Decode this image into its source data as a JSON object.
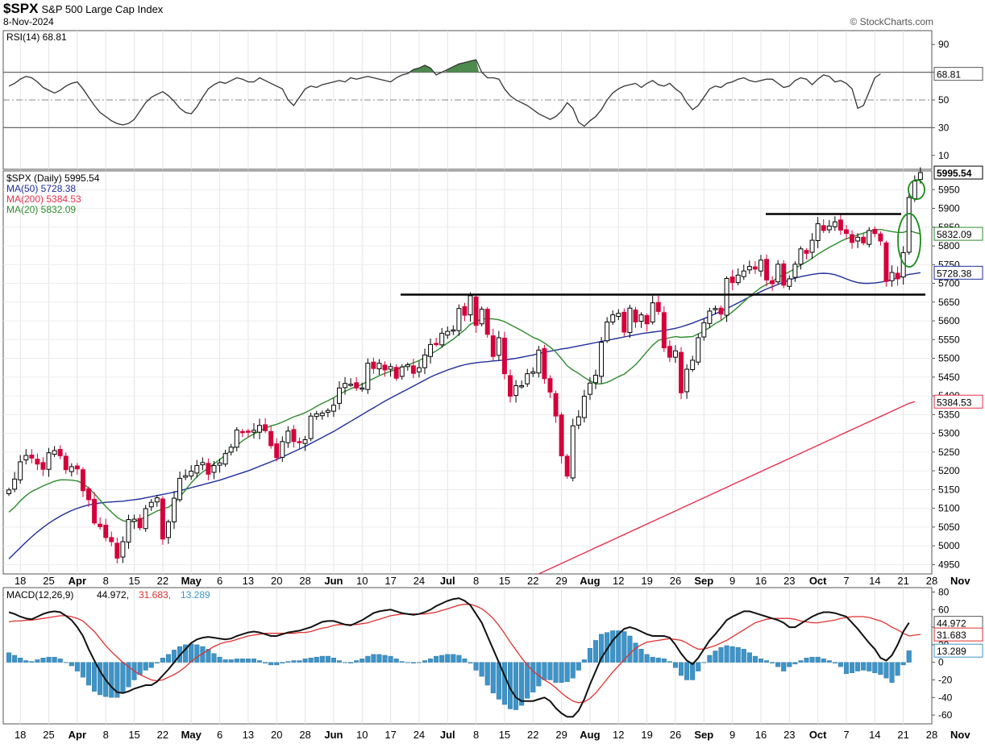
{
  "header": {
    "symbol": "$SPX",
    "name": "S&P 500 Large Cap Index",
    "date": "8-Nov-2024",
    "brand": "© StockCharts.com"
  },
  "colors": {
    "up": "#ffffff",
    "down": "#d4003a",
    "ma50": "#1f2f9a",
    "ma200": "#e8304c",
    "ma20": "#2e8b2e",
    "macd": "#111111",
    "signal": "#e03030",
    "hist": "#3d94c8",
    "rsi_fill": "#4d8a4d"
  },
  "chart_data": [
    {
      "type": "line",
      "title": "RSI(14) 68.81",
      "indicator": "RSI(14)",
      "last_value": "68.81",
      "ylim": [
        0,
        100
      ],
      "yticks": [
        "90",
        "70",
        "50",
        "30",
        "10"
      ],
      "overbought": 70,
      "oversold": 30,
      "midline": 50,
      "values": [
        60,
        62,
        65,
        67,
        66,
        63,
        59,
        57,
        55,
        57,
        60,
        62,
        63,
        58,
        52,
        46,
        41,
        38,
        35,
        33,
        32,
        33,
        36,
        42,
        48,
        52,
        54,
        56,
        53,
        49,
        44,
        41,
        40,
        45,
        52,
        58,
        61,
        63,
        62,
        64,
        66,
        65,
        63,
        63,
        66,
        64,
        62,
        60,
        58,
        50,
        46,
        52,
        58,
        60,
        59,
        61,
        62,
        63,
        64,
        63,
        66,
        65,
        66,
        67,
        66,
        65,
        64,
        63,
        66,
        68,
        69,
        72,
        73,
        75,
        73,
        68,
        70,
        72,
        74,
        76,
        77,
        78,
        79,
        70,
        66,
        66,
        65,
        58,
        53,
        50,
        48,
        46,
        43,
        40,
        38,
        36,
        38,
        42,
        48,
        44,
        34,
        31,
        35,
        38,
        43,
        50,
        55,
        58,
        60,
        61,
        62,
        59,
        62,
        64,
        61,
        60,
        62,
        58,
        55,
        48,
        43,
        46,
        52,
        58,
        60,
        59,
        62,
        63,
        65,
        66,
        64,
        63,
        64,
        65,
        65,
        62,
        59,
        60,
        64,
        66,
        65,
        61,
        65,
        68,
        67,
        63,
        64,
        62,
        58,
        44,
        46,
        56,
        66,
        68.81
      ],
      "last_value_num": 68.81
    },
    {
      "type": "candlestick",
      "title": "$SPX (Daily) 5995.54",
      "ylim": [
        4925,
        6000
      ],
      "yticks": [
        "4950",
        "5000",
        "5050",
        "5100",
        "5150",
        "5200",
        "5250",
        "5300",
        "5350",
        "5400",
        "5450",
        "5500",
        "5550",
        "5600",
        "5650",
        "5700",
        "5750",
        "5800",
        "5850",
        "5900",
        "5950"
      ],
      "x_tick_labels": [
        "18",
        "25",
        "Apr",
        "8",
        "15",
        "22",
        "May",
        "6",
        "13",
        "20",
        "28",
        "Jun",
        "10",
        "17",
        "24",
        "Jul",
        "8",
        "15",
        "22",
        "29",
        "Aug",
        "12",
        "19",
        "26",
        "Sep",
        "9",
        "16",
        "23",
        "Oct",
        "7",
        "14",
        "21",
        "28",
        "Nov"
      ],
      "legend": [
        {
          "label": "$SPX (Daily) 5995.54",
          "color": "#000000"
        },
        {
          "label": "MA(50) 5728.38",
          "color": "#1f2f9a"
        },
        {
          "label": "MA(200) 5384.53",
          "color": "#e8304c"
        },
        {
          "label": "MA(20) 5832.09",
          "color": "#2e8b2e"
        }
      ],
      "last_labels": [
        {
          "text": "5995.54",
          "value": 5995.54,
          "color": "#000000",
          "bold": true
        },
        {
          "text": "5832.09",
          "value": 5832.09,
          "color": "#2e8b2e"
        },
        {
          "text": "5728.38",
          "value": 5728.38,
          "color": "#1f2f9a"
        },
        {
          "text": "5384.53",
          "value": 5384.53,
          "color": "#e8304c"
        }
      ],
      "closes": [
        5149,
        5178,
        5224,
        5241,
        5234,
        5218,
        5204,
        5248,
        5254,
        5240,
        5203,
        5211,
        5205,
        5147,
        5123,
        5061,
        5051,
        5022,
        5011,
        4967,
        5011,
        5070,
        5071,
        5048,
        5099,
        5116,
        5128,
        5018,
        5064,
        5127,
        5180,
        5187,
        5199,
        5214,
        5222,
        5191,
        5214,
        5221,
        5246,
        5263,
        5309,
        5303,
        5304,
        5308,
        5321,
        5307,
        5267,
        5235,
        5278,
        5306,
        5278,
        5277,
        5283,
        5346,
        5352,
        5354,
        5361,
        5375,
        5421,
        5433,
        5431,
        5421,
        5421,
        5487,
        5473,
        5487,
        5469,
        5478,
        5447,
        5477,
        5483,
        5460,
        5475,
        5509,
        5537,
        5537,
        5567,
        5572,
        5576,
        5633,
        5615,
        5667,
        5588,
        5631,
        5564,
        5505,
        5555,
        5459,
        5399,
        5427,
        5427,
        5459,
        5464,
        5522,
        5446,
        5410,
        5346,
        5240,
        5186,
        5320,
        5344,
        5399,
        5434,
        5455,
        5543,
        5597,
        5616,
        5620,
        5570,
        5634,
        5597,
        5616,
        5592,
        5648,
        5625,
        5528,
        5503,
        5520,
        5408,
        5471,
        5495,
        5555,
        5595,
        5626,
        5633,
        5618,
        5713,
        5702,
        5722,
        5733,
        5745,
        5738,
        5762,
        5709,
        5699,
        5751,
        5695,
        5712,
        5751,
        5792,
        5780,
        5815,
        5859,
        5841,
        5853,
        5864,
        5842,
        5833,
        5809,
        5823,
        5808,
        5841,
        5833,
        5813,
        5705,
        5729,
        5712,
        5782,
        5929,
        5973,
        5995.54
      ],
      "ma20": [
        5090,
        5103,
        5120,
        5134,
        5145,
        5152,
        5160,
        5166,
        5172,
        5176,
        5176,
        5175,
        5173,
        5166,
        5154,
        5139,
        5122,
        5105,
        5090,
        5076,
        5067,
        5064,
        5065,
        5070,
        5077,
        5085,
        5093,
        5098,
        5103,
        5114,
        5130,
        5149,
        5168,
        5184,
        5197,
        5207,
        5219,
        5230,
        5242,
        5255,
        5268,
        5280,
        5290,
        5298,
        5306,
        5314,
        5320,
        5324,
        5330,
        5337,
        5344,
        5349,
        5355,
        5363,
        5372,
        5380,
        5387,
        5395,
        5404,
        5412,
        5419,
        5425,
        5431,
        5439,
        5446,
        5454,
        5460,
        5466,
        5470,
        5476,
        5482,
        5488,
        5494,
        5502,
        5511,
        5520,
        5530,
        5541,
        5551,
        5564,
        5576,
        5591,
        5598,
        5605,
        5606,
        5605,
        5603,
        5598,
        5590,
        5582,
        5574,
        5565,
        5556,
        5550,
        5541,
        5530,
        5517,
        5499,
        5480,
        5469,
        5460,
        5449,
        5440,
        5432,
        5432,
        5436,
        5443,
        5451,
        5458,
        5470,
        5483,
        5500,
        5518,
        5535,
        5548,
        5552,
        5555,
        5558,
        5556,
        5557,
        5558,
        5565,
        5573,
        5582,
        5593,
        5601,
        5613,
        5624,
        5637,
        5651,
        5665,
        5677,
        5689,
        5697,
        5705,
        5716,
        5723,
        5731,
        5739,
        5749,
        5757,
        5767,
        5778,
        5787,
        5796,
        5804,
        5812,
        5819,
        5824,
        5829,
        5834,
        5839,
        5842,
        5844,
        5841,
        5838,
        5836,
        5836,
        5841,
        5836,
        5832.09
      ],
      "ma50": [
        4965,
        4980,
        4995,
        5010,
        5024,
        5037,
        5049,
        5060,
        5070,
        5079,
        5087,
        5094,
        5100,
        5105,
        5109,
        5112,
        5114,
        5116,
        5117,
        5118,
        5119,
        5121,
        5123,
        5125,
        5128,
        5131,
        5134,
        5137,
        5140,
        5143,
        5147,
        5151,
        5155,
        5159,
        5163,
        5167,
        5171,
        5175,
        5180,
        5185,
        5190,
        5195,
        5200,
        5206,
        5212,
        5218,
        5224,
        5230,
        5237,
        5244,
        5251,
        5258,
        5265,
        5273,
        5281,
        5289,
        5297,
        5305,
        5314,
        5323,
        5332,
        5341,
        5350,
        5359,
        5368,
        5377,
        5386,
        5394,
        5402,
        5410,
        5418,
        5426,
        5434,
        5442,
        5450,
        5457,
        5463,
        5469,
        5474,
        5479,
        5483,
        5486,
        5488,
        5490,
        5491,
        5493,
        5494,
        5496,
        5498,
        5500,
        5503,
        5506,
        5509,
        5513,
        5516,
        5519,
        5522,
        5525,
        5527,
        5530,
        5533,
        5536,
        5539,
        5542,
        5545,
        5548,
        5551,
        5554,
        5557,
        5560,
        5563,
        5566,
        5568,
        5570,
        5572,
        5574,
        5577,
        5580,
        5584,
        5589,
        5594,
        5600,
        5606,
        5612,
        5619,
        5626,
        5633,
        5640,
        5648,
        5656,
        5664,
        5671,
        5678,
        5685,
        5691,
        5697,
        5703,
        5709,
        5714,
        5718,
        5721,
        5724,
        5726,
        5727,
        5726,
        5723,
        5718,
        5712,
        5706,
        5702,
        5700,
        5700,
        5701,
        5703,
        5706,
        5710,
        5715,
        5720,
        5724,
        5726,
        5728.38
      ],
      "ma200_first_index": 93,
      "ma200": [
        4925,
        4932,
        4939,
        4946,
        4953,
        4960,
        4967,
        4974,
        4981,
        4988,
        4995,
        5002,
        5009,
        5016,
        5023,
        5030,
        5037,
        5044,
        5051,
        5058,
        5065,
        5072,
        5079,
        5086,
        5093,
        5100,
        5107,
        5114,
        5121,
        5128,
        5135,
        5142,
        5149,
        5156,
        5163,
        5170,
        5177,
        5184,
        5191,
        5198,
        5205,
        5212,
        5219,
        5226,
        5233,
        5240,
        5247,
        5254,
        5261,
        5268,
        5275,
        5282,
        5289,
        5296,
        5303,
        5310,
        5317,
        5324,
        5331,
        5338,
        5345,
        5352,
        5359,
        5366,
        5373,
        5380,
        5384.53
      ],
      "horizontal_lines": [
        5690,
        5690
      ]
    },
    {
      "type": "bar",
      "title": "MACD(12,26,9) 44.972, 31.683, 13.289",
      "ylim": [
        -70,
        85
      ],
      "yticks": [
        "80",
        "60",
        "40",
        "20",
        "0",
        "-20",
        "-40",
        "-60"
      ],
      "legend": [
        {
          "label": "MACD(12,26,9)",
          "color": "#000000"
        },
        {
          "label": "44.972",
          "color": "#000000"
        },
        {
          "label": "31.683",
          "color": "#e03030"
        },
        {
          "label": "13.289",
          "color": "#3d94c8"
        }
      ],
      "macd": [
        57,
        55,
        52,
        50,
        49,
        52,
        55,
        57,
        58,
        57,
        53,
        48,
        40,
        30,
        15,
        2,
        -10,
        -20,
        -28,
        -34,
        -35,
        -33,
        -30,
        -28,
        -26,
        -26,
        -22,
        -15,
        -8,
        0,
        8,
        15,
        22,
        26,
        28,
        29,
        28,
        27,
        26,
        27,
        30,
        32,
        34,
        35,
        34,
        32,
        30,
        30,
        32,
        34,
        35,
        36,
        38,
        40,
        43,
        46,
        47,
        47,
        45,
        43,
        42,
        45,
        48,
        52,
        56,
        58,
        59,
        60,
        58,
        56,
        55,
        54,
        55,
        57,
        60,
        64,
        67,
        70,
        72,
        73,
        70,
        65,
        55,
        45,
        30,
        15,
        0,
        -15,
        -30,
        -40,
        -44,
        -44,
        -44,
        -42,
        -40,
        -44,
        -52,
        -58,
        -62,
        -62,
        -55,
        -42,
        -25,
        -10,
        5,
        15,
        25,
        32,
        38,
        40,
        38,
        35,
        32,
        30,
        30,
        30,
        28,
        20,
        10,
        2,
        -2,
        5,
        15,
        25,
        32,
        40,
        48,
        52,
        55,
        58,
        58,
        56,
        54,
        52,
        50,
        48,
        45,
        40,
        40,
        44,
        48,
        52,
        55,
        57,
        57,
        56,
        54,
        52,
        45,
        38,
        30,
        22,
        15,
        5,
        2,
        8,
        20,
        35,
        44.972
      ],
      "signal": [
        46,
        47,
        47,
        48,
        48,
        49,
        50,
        51,
        52,
        53,
        53,
        52,
        50,
        47,
        41,
        35,
        27,
        19,
        12,
        6,
        0,
        -5,
        -10,
        -14,
        -17,
        -20,
        -21,
        -20,
        -17,
        -14,
        -10,
        -5,
        1,
        6,
        10,
        14,
        18,
        21,
        23,
        24,
        26,
        28,
        30,
        31,
        32,
        33,
        33,
        33,
        33,
        33,
        33,
        34,
        34,
        35,
        37,
        39,
        40,
        42,
        43,
        43,
        43,
        43,
        44,
        45,
        47,
        49,
        51,
        53,
        54,
        55,
        55,
        55,
        55,
        55,
        56,
        57,
        59,
        61,
        63,
        65,
        66,
        66,
        64,
        61,
        56,
        50,
        42,
        33,
        23,
        14,
        5,
        -3,
        -10,
        -15,
        -20,
        -24,
        -29,
        -35,
        -40,
        -44,
        -46,
        -45,
        -41,
        -35,
        -27,
        -19,
        -11,
        -4,
        3,
        10,
        16,
        20,
        23,
        24,
        25,
        26,
        27,
        26,
        25,
        22,
        18,
        15,
        15,
        17,
        19,
        22,
        25,
        29,
        33,
        37,
        41,
        45,
        47,
        49,
        50,
        50,
        50,
        50,
        49,
        47,
        46,
        45,
        45,
        46,
        47,
        48,
        50,
        51,
        52,
        52,
        52,
        51,
        49,
        47,
        44,
        40,
        37,
        33,
        30,
        31,
        31.683
      ],
      "histogram": [
        11,
        8,
        5,
        2,
        1,
        3,
        5,
        6,
        6,
        4,
        0,
        -4,
        -10,
        -17,
        -26,
        -33,
        -37,
        -39,
        -40,
        -40,
        -35,
        -28,
        -20,
        -14,
        -9,
        -6,
        -1,
        5,
        9,
        14,
        18,
        20,
        21,
        20,
        18,
        15,
        10,
        6,
        3,
        3,
        4,
        4,
        4,
        4,
        2,
        -1,
        -3,
        -3,
        -1,
        1,
        2,
        2,
        4,
        5,
        6,
        7,
        7,
        5,
        2,
        0,
        -1,
        2,
        4,
        7,
        9,
        9,
        8,
        7,
        4,
        1,
        0,
        -1,
        0,
        2,
        4,
        7,
        8,
        9,
        9,
        8,
        4,
        -1,
        -9,
        -16,
        -26,
        -35,
        -42,
        -48,
        -53,
        -54,
        -49,
        -41,
        -34,
        -27,
        -20,
        -20,
        -23,
        -23,
        -22,
        -18,
        -9,
        3,
        16,
        25,
        32,
        34,
        36,
        36,
        35,
        30,
        22,
        15,
        9,
        6,
        5,
        4,
        1,
        -6,
        -15,
        -20,
        -20,
        -10,
        0,
        8,
        13,
        17,
        19,
        18,
        17,
        15,
        11,
        7,
        4,
        2,
        -1,
        -5,
        -10,
        -5,
        -2,
        2,
        5,
        6,
        6,
        4,
        2,
        -1,
        -5,
        -13,
        -12,
        -10,
        -9,
        -10,
        -12,
        -14,
        -18,
        -23,
        -15,
        -3,
        13.289
      ],
      "x_tick_labels": [
        "18",
        "25",
        "Apr",
        "8",
        "15",
        "22",
        "May",
        "6",
        "13",
        "20",
        "28",
        "Jun",
        "10",
        "17",
        "24",
        "Jul",
        "8",
        "15",
        "22",
        "29",
        "Aug",
        "12",
        "19",
        "26",
        "Sep",
        "9",
        "16",
        "23",
        "Oct",
        "7",
        "14",
        "21",
        "28",
        "Nov"
      ]
    }
  ]
}
